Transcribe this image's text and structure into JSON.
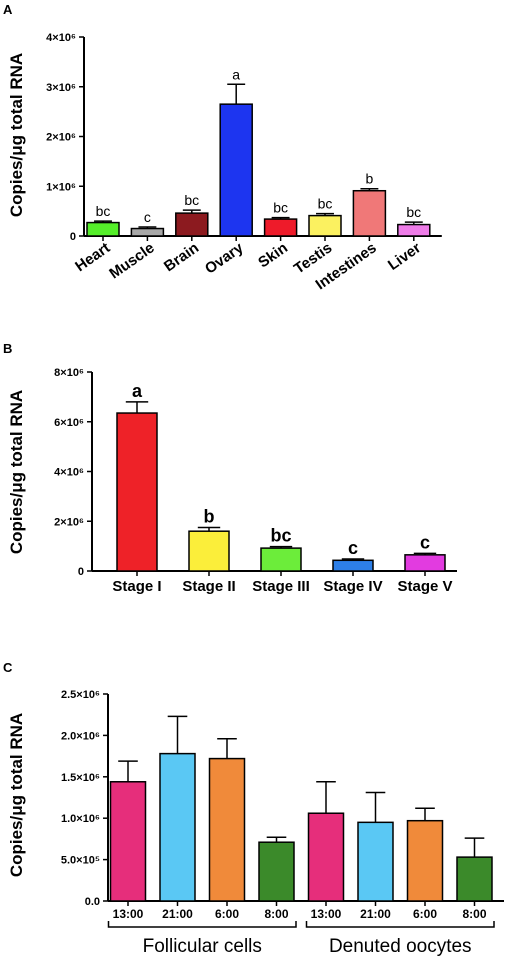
{
  "panels": [
    "A",
    "B",
    "C"
  ],
  "chart_data": [
    {
      "type": "bar",
      "panel": "A",
      "ylabel": "Copies/μg total RNA",
      "ylim": [
        0,
        4000000
      ],
      "y_ticks": [
        0,
        1000000,
        2000000,
        3000000,
        4000000
      ],
      "y_tick_labels": [
        "0",
        "1×10⁶",
        "2×10⁶",
        "3×10⁶",
        "4×10⁶"
      ],
      "categories": [
        "Heart",
        "Muscle",
        "Brain",
        "Ovary",
        "Skin",
        "Testis",
        "Intestines",
        "Liver"
      ],
      "values": [
        270000,
        150000,
        460000,
        2650000,
        340000,
        410000,
        910000,
        230000
      ],
      "errors": [
        30000,
        30000,
        60000,
        400000,
        30000,
        40000,
        40000,
        50000
      ],
      "colors": [
        "#55ee2a",
        "#a8a8a8",
        "#8c1a1f",
        "#1d35f0",
        "#ee1b2a",
        "#fbf160",
        "#f07878",
        "#ee7ce8"
      ],
      "significance": [
        "bc",
        "c",
        "bc",
        "a",
        "bc",
        "bc",
        "b",
        "bc"
      ],
      "grid": false
    },
    {
      "type": "bar",
      "panel": "B",
      "ylabel": "Copies/μg total RNA",
      "ylim": [
        0,
        8000000
      ],
      "y_ticks": [
        0,
        2000000,
        4000000,
        6000000,
        8000000
      ],
      "y_tick_labels": [
        "0",
        "2×10⁶",
        "4×10⁶",
        "6×10⁶",
        "8×10⁶"
      ],
      "categories": [
        "Stage I",
        "Stage II",
        "Stage III",
        "Stage IV",
        "Stage V"
      ],
      "values": [
        6350000,
        1600000,
        920000,
        430000,
        650000
      ],
      "errors": [
        450000,
        150000,
        60000,
        50000,
        60000
      ],
      "colors": [
        "#ee2228",
        "#fbee3a",
        "#6ced3a",
        "#2d7fe8",
        "#e23be0"
      ],
      "significance": [
        "a",
        "b",
        "bc",
        "c",
        "c"
      ],
      "grid": false
    },
    {
      "type": "bar",
      "panel": "C",
      "ylabel": "Copies/μg total RNA",
      "ylim": [
        0,
        2500000
      ],
      "y_ticks": [
        0,
        500000,
        1000000,
        1500000,
        2000000,
        2500000
      ],
      "y_tick_labels": [
        "0.0",
        "5.0×10⁵",
        "1.0×10⁶",
        "1.5×10⁶",
        "2.0×10⁶",
        "2.5×10⁶"
      ],
      "categories": [
        "13:00",
        "21:00",
        "6:00",
        "8:00",
        "13:00",
        "21:00",
        "6:00",
        "8:00"
      ],
      "values": [
        1440000,
        1780000,
        1720000,
        710000,
        1060000,
        950000,
        970000,
        530000
      ],
      "errors": [
        250000,
        450000,
        240000,
        60000,
        380000,
        360000,
        150000,
        230000
      ],
      "colors": [
        "#e62e7b",
        "#5ac8f4",
        "#f08a3a",
        "#3b8a2a",
        "#e62e7b",
        "#5ac8f4",
        "#f08a3a",
        "#3b8a2a"
      ],
      "groups": [
        {
          "label": "Follicular cells",
          "from": 0,
          "to": 3
        },
        {
          "label": "Denuted oocytes",
          "from": 4,
          "to": 7
        }
      ],
      "grid": false
    }
  ]
}
